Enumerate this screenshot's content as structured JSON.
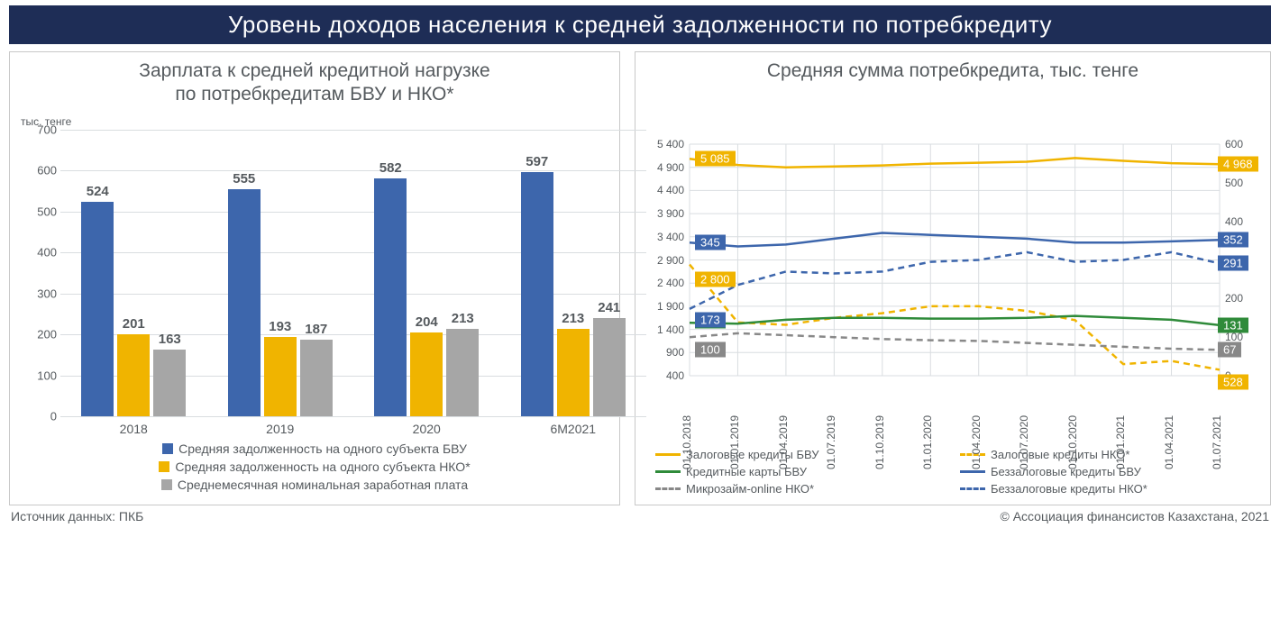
{
  "colors": {
    "header_bg": "#1e2d56",
    "panel_border": "#c8c8c8",
    "grid": "#d9dde0",
    "text": "#555a5e",
    "bar_bvu": "#3d66ac",
    "bar_nko": "#f0b400",
    "bar_wage": "#a6a6a6",
    "line_zalog_bvu": "#f0b400",
    "line_zalog_nko": "#f0b400",
    "line_card_bvu": "#2f8b3a",
    "line_bezz_bvu": "#3d66ac",
    "line_micro_nko": "#888888",
    "line_bezz_nko": "#3d66ac"
  },
  "header_title": "Уровень доходов населения к средней задолженности по потребкредиту",
  "footer_left": "Источник данных: ПКБ",
  "footer_right": "© Ассоциация финансистов Казахстана, 2021",
  "bar_chart": {
    "title": "Зарплата к средней кредитной нагрузке\nпо потребкредитам БВУ и НКО*",
    "unit": "тыс. тенге",
    "y_ticks": [
      0,
      100,
      200,
      300,
      400,
      500,
      600,
      700
    ],
    "ymax": 700,
    "categories": [
      "2018",
      "2019",
      "2020",
      "6М2021"
    ],
    "series": [
      {
        "key": "bvu",
        "label": "Средняя задолженность на одного субъекта БВУ",
        "color": "#3d66ac",
        "values": [
          524,
          555,
          582,
          597
        ]
      },
      {
        "key": "nko",
        "label": "Средняя задолженность на одного субъекта НКО*",
        "color": "#f0b400",
        "values": [
          201,
          193,
          204,
          213
        ]
      },
      {
        "key": "wage",
        "label": "Среднемесячная номинальная заработная плата",
        "color": "#a6a6a6",
        "values": [
          163,
          187,
          213,
          241
        ]
      }
    ]
  },
  "line_chart": {
    "title": "Средняя сумма потребкредита, тыс. тенге",
    "x_labels": [
      "01.10.2018",
      "01.01.2019",
      "01.04.2019",
      "01.07.2019",
      "01.10.2019",
      "01.01.2020",
      "01.04.2020",
      "01.07.2020",
      "01.10.2020",
      "01.01.2021",
      "01.04.2021",
      "01.07.2021"
    ],
    "left_axis": {
      "min": 400,
      "max": 5400,
      "step": 500
    },
    "right_axis": {
      "min": 0,
      "max": 600,
      "step": 100
    },
    "series": [
      {
        "key": "zalog_bvu",
        "label": "Залоговые кредиты БВУ",
        "color": "#f0b400",
        "dash": "solid",
        "axis": "left",
        "values": [
          5085,
          4950,
          4900,
          4920,
          4940,
          4980,
          5000,
          5020,
          5100,
          5040,
          4990,
          4968
        ],
        "start_badge": "5 085",
        "end_badge": "4 968"
      },
      {
        "key": "zalog_nko",
        "label": "Залоговые кредиты НКО*",
        "color": "#f0b400",
        "dash": "dashed",
        "axis": "left",
        "values": [
          2800,
          1550,
          1500,
          1650,
          1750,
          1900,
          1900,
          1800,
          1600,
          650,
          720,
          528
        ],
        "start_badge": "2 800",
        "end_badge": "528"
      },
      {
        "key": "card_bvu",
        "label": "Кредитные карты БВУ",
        "color": "#2f8b3a",
        "dash": "solid",
        "axis": "right",
        "values": [
          137,
          135,
          145,
          150,
          150,
          148,
          148,
          150,
          155,
          150,
          145,
          131
        ],
        "start_badge": "137",
        "end_badge": "131"
      },
      {
        "key": "bezz_bvu",
        "label": "Беззалоговые кредиты БВУ",
        "color": "#3d66ac",
        "dash": "solid",
        "axis": "right",
        "values": [
          345,
          335,
          340,
          355,
          370,
          365,
          360,
          355,
          345,
          345,
          348,
          352
        ],
        "start_badge": "345",
        "end_badge": "352"
      },
      {
        "key": "micro_nko",
        "label": "Микрозайм-online НКО*",
        "color": "#888888",
        "dash": "dashed",
        "axis": "right",
        "values": [
          100,
          110,
          105,
          100,
          95,
          92,
          90,
          85,
          80,
          75,
          70,
          67
        ],
        "start_badge": "100",
        "end_badge": "67"
      },
      {
        "key": "bezz_nko",
        "label": "Беззалоговые кредиты НКО*",
        "color": "#3d66ac",
        "dash": "dashed",
        "axis": "right",
        "values": [
          173,
          235,
          270,
          265,
          270,
          295,
          300,
          320,
          295,
          300,
          320,
          291
        ],
        "start_badge": "173",
        "end_badge": "291"
      }
    ],
    "legend_order": [
      "zalog_bvu",
      "zalog_nko",
      "card_bvu",
      "bezz_bvu",
      "micro_nko",
      "bezz_nko"
    ]
  }
}
